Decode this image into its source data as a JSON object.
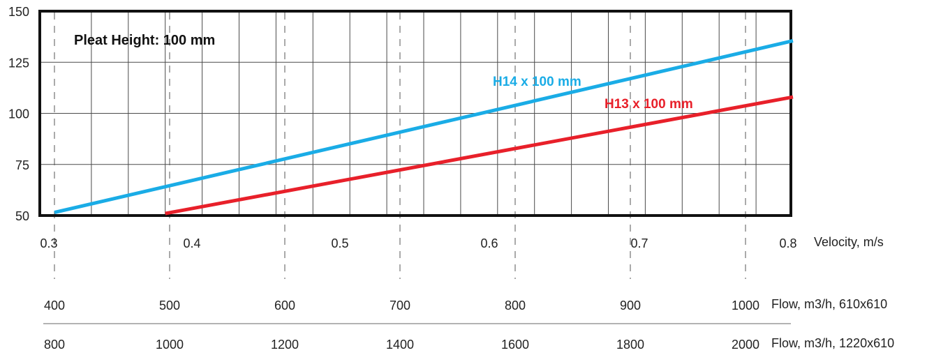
{
  "chart_data": {
    "type": "line",
    "annotation": "Pleat Height: 100 mm",
    "x_axis_label": "Velocity, m/s",
    "xlim": [
      0.3,
      0.8
    ],
    "ylim": [
      50,
      150
    ],
    "grid": true,
    "x_ticks": [
      "0.3",
      "0.4",
      "0.5",
      "0.6",
      "0.7",
      "0.8"
    ],
    "y_ticks": [
      "50",
      "75",
      "100",
      "125",
      "150"
    ],
    "series": [
      {
        "name": "H14 x 100 mm",
        "color": "#1aace6",
        "x": [
          0.3,
          0.8
        ],
        "y": [
          51.5,
          135.5
        ]
      },
      {
        "name": "H13 x 100 mm",
        "color": "#e8202a",
        "x": [
          0.375,
          0.8
        ],
        "y": [
          51,
          108
        ]
      }
    ],
    "secondary_axes": [
      {
        "label": "Flow, m3/h, 610x610",
        "ticks": [
          "400",
          "500",
          "600",
          "700",
          "800",
          "900",
          "1000"
        ]
      },
      {
        "label": "Flow, m3/h, 1220x610",
        "ticks": [
          "800",
          "1000",
          "1200",
          "1400",
          "1600",
          "1800",
          "2000"
        ]
      }
    ]
  }
}
